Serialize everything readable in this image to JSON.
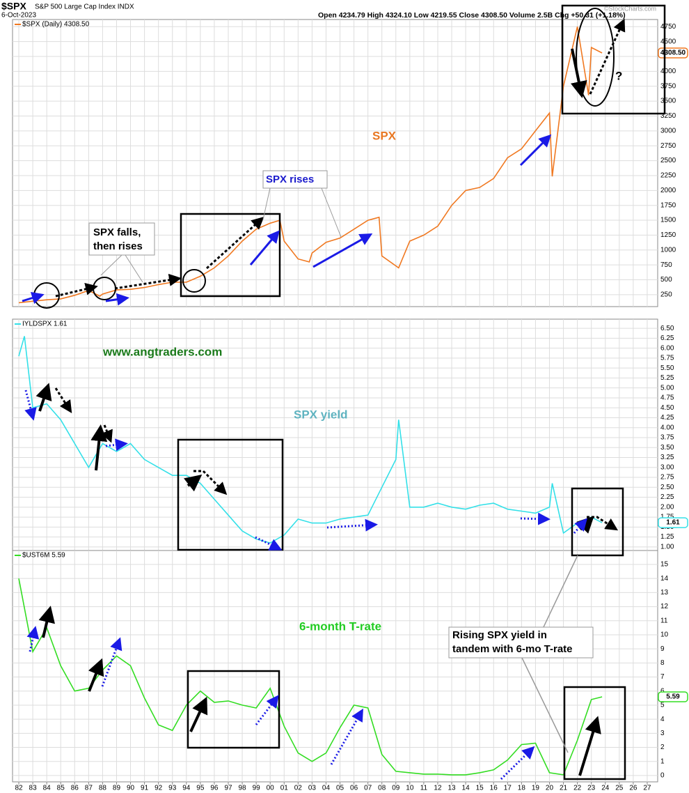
{
  "header": {
    "symbol": "$SPX",
    "name": "S&P 500 Large Cap Index INDX",
    "date": "6-Oct-2023",
    "quote": "Open 4234.79 High 4324.10 Low 4219.55 Close 4308.50 Volume 2.5B Chg +50.31 (+1.18%)",
    "credit": "©StockCharts.com"
  },
  "chart_data": [
    {
      "type": "line",
      "x": [
        1982,
        1983,
        1984,
        1985,
        1986,
        1987,
        1987.8,
        1988,
        1989,
        1990,
        1991,
        1992,
        1993,
        1994,
        1995,
        1996,
        1997,
        1998,
        1999,
        2000,
        2000.7,
        2001,
        2002,
        2002.8,
        2003,
        2004,
        2005,
        2006,
        2007,
        2007.8,
        2008,
        2009.2,
        2010,
        2011,
        2012,
        2013,
        2014,
        2015,
        2016,
        2017,
        2018,
        2019,
        2020,
        2020.2,
        2021,
        2022,
        2022.8,
        2023,
        2023.77
      ],
      "series": [
        {
          "name": "$SPX (Daily) 4308.50",
          "color": "#f07820",
          "last_value_label": "4308.50",
          "values": [
            115,
            140,
            165,
            180,
            240,
            320,
            225,
            260,
            330,
            340,
            370,
            420,
            460,
            460,
            560,
            700,
            900,
            1150,
            1350,
            1450,
            1500,
            1150,
            850,
            800,
            950,
            1130,
            1200,
            1350,
            1500,
            1550,
            900,
            700,
            1150,
            1250,
            1400,
            1750,
            2000,
            2050,
            2200,
            2550,
            2700,
            3000,
            3300,
            2237,
            3750,
            4750,
            3600,
            4400,
            4308.5
          ]
        }
      ],
      "xlim": [
        1981.55,
        2027.75
      ],
      "ylim": [
        50,
        4870
      ],
      "yticks": [
        250,
        500,
        750,
        1000,
        1250,
        1500,
        1750,
        2000,
        2250,
        2500,
        2750,
        3000,
        3250,
        3500,
        3750,
        4000,
        4250,
        4500,
        4750
      ],
      "grid": true,
      "annotations": [
        "SPX",
        "SPX falls,",
        "then rises",
        "SPX rises",
        "?"
      ]
    },
    {
      "type": "line",
      "x": [
        1982,
        1982.4,
        1983,
        1984,
        1985,
        1986,
        1987,
        1988,
        1989,
        1990,
        1991,
        1992,
        1993,
        1994,
        1995,
        1996,
        1997,
        1998,
        1999,
        2000,
        2001,
        2002,
        2003,
        2004,
        2005,
        2006,
        2007,
        2008,
        2009,
        2009.2,
        2010,
        2011,
        2012,
        2013,
        2014,
        2015,
        2016,
        2017,
        2018,
        2019,
        2020,
        2020.2,
        2021,
        2022,
        2023,
        2023.77
      ],
      "series": [
        {
          "name": "IYLDSPX 1.61",
          "color": "#33e0e8",
          "last_value_label": "1.61",
          "values": [
            5.8,
            6.3,
            4.5,
            4.6,
            4.2,
            3.6,
            3.0,
            3.6,
            3.4,
            3.6,
            3.2,
            3.0,
            2.8,
            2.8,
            2.6,
            2.2,
            1.8,
            1.4,
            1.2,
            1.1,
            1.3,
            1.7,
            1.6,
            1.6,
            1.7,
            1.75,
            1.8,
            2.5,
            3.2,
            4.2,
            2.0,
            2.0,
            2.1,
            2.0,
            1.95,
            2.05,
            2.1,
            1.95,
            1.9,
            1.85,
            2.0,
            2.6,
            1.35,
            1.6,
            1.75,
            1.61
          ]
        }
      ],
      "xlim": [
        1981.55,
        2027.75
      ],
      "ylim": [
        0.91,
        6.73
      ],
      "yticks": [
        {
          "value": 1,
          "label": "1.00"
        },
        1.25,
        {
          "value": 1.5,
          "label": "1.50"
        },
        1.75,
        {
          "value": 2,
          "label": "2.00"
        },
        2.25,
        {
          "value": 2.5,
          "label": "2.50"
        },
        2.75,
        {
          "value": 3,
          "label": "3.00"
        },
        3.25,
        {
          "value": 3.5,
          "label": "3.50"
        },
        3.75,
        {
          "value": 4,
          "label": "4.00"
        },
        4.25,
        {
          "value": 4.5,
          "label": "4.50"
        },
        4.75,
        {
          "value": 5,
          "label": "5.00"
        },
        5.25,
        {
          "value": 5.5,
          "label": "5.50"
        },
        5.75,
        {
          "value": 6,
          "label": "6.00"
        },
        6.25,
        {
          "value": 6.5,
          "label": "6.50"
        }
      ],
      "grid": true,
      "annotations": [
        "www.angtraders.com",
        "SPX yield"
      ]
    },
    {
      "type": "line",
      "x": [
        1982,
        1983,
        1984,
        1985,
        1986,
        1987,
        1988,
        1989,
        1990,
        1991,
        1992,
        1993,
        1994,
        1995,
        1996,
        1997,
        1998,
        1999,
        2000,
        2001,
        2002,
        2003,
        2004,
        2005,
        2006,
        2007,
        2008,
        2009,
        2010,
        2011,
        2012,
        2013,
        2014,
        2015,
        2016,
        2017,
        2018,
        2019,
        2020,
        2021,
        2022,
        2023,
        2023.77
      ],
      "series": [
        {
          "name": "$UST6M 5.59",
          "color": "#33dd22",
          "last_value_label": "5.59",
          "values": [
            14,
            8.8,
            10.5,
            7.8,
            6.0,
            6.2,
            7.5,
            8.5,
            7.8,
            5.5,
            3.6,
            3.2,
            5.0,
            6.0,
            5.2,
            5.3,
            5.0,
            4.8,
            6.2,
            3.5,
            1.6,
            1.0,
            1.6,
            3.4,
            5.0,
            4.8,
            1.5,
            0.3,
            0.2,
            0.1,
            0.1,
            0.05,
            0.05,
            0.2,
            0.4,
            1.1,
            2.2,
            2.3,
            0.2,
            0.05,
            2.5,
            5.4,
            5.59
          ]
        }
      ],
      "xlim": [
        1981.55,
        2027.75
      ],
      "ylim": [
        -0.45,
        15.99
      ],
      "yticks": [
        0,
        1,
        2,
        3,
        4,
        5,
        6,
        7,
        8,
        9,
        10,
        11,
        12,
        13,
        14,
        15
      ],
      "xticks": [
        {
          "value": 1982,
          "label": "82"
        },
        {
          "value": 1983,
          "label": "83"
        },
        {
          "value": 1984,
          "label": "84"
        },
        {
          "value": 1985,
          "label": "85"
        },
        {
          "value": 1986,
          "label": "86"
        },
        {
          "value": 1987,
          "label": "87"
        },
        {
          "value": 1988,
          "label": "88"
        },
        {
          "value": 1989,
          "label": "89"
        },
        {
          "value": 1990,
          "label": "90"
        },
        {
          "value": 1991,
          "label": "91"
        },
        {
          "value": 1992,
          "label": "92"
        },
        {
          "value": 1993,
          "label": "93"
        },
        {
          "value": 1994,
          "label": "94"
        },
        {
          "value": 1995,
          "label": "95"
        },
        {
          "value": 1996,
          "label": "96"
        },
        {
          "value": 1997,
          "label": "97"
        },
        {
          "value": 1998,
          "label": "98"
        },
        {
          "value": 1999,
          "label": "99"
        },
        {
          "value": 2000,
          "label": "00"
        },
        {
          "value": 2001,
          "label": "01"
        },
        {
          "value": 2002,
          "label": "02"
        },
        {
          "value": 2003,
          "label": "03"
        },
        {
          "value": 2004,
          "label": "04"
        },
        {
          "value": 2005,
          "label": "05"
        },
        {
          "value": 2006,
          "label": "06"
        },
        {
          "value": 2007,
          "label": "07"
        },
        {
          "value": 2008,
          "label": "08"
        },
        {
          "value": 2009,
          "label": "09"
        },
        {
          "value": 2010,
          "label": "10"
        },
        {
          "value": 2011,
          "label": "11"
        },
        {
          "value": 2012,
          "label": "12"
        },
        {
          "value": 2013,
          "label": "13"
        },
        {
          "value": 2014,
          "label": "14"
        },
        {
          "value": 2015,
          "label": "15"
        },
        {
          "value": 2016,
          "label": "16"
        },
        {
          "value": 2017,
          "label": "17"
        },
        {
          "value": 2018,
          "label": "18"
        },
        {
          "value": 2019,
          "label": "19"
        },
        {
          "value": 2020,
          "label": "20"
        },
        {
          "value": 2021,
          "label": "21"
        },
        {
          "value": 2022,
          "label": "22"
        },
        {
          "value": 2023,
          "label": "23"
        },
        {
          "value": 2024,
          "label": "24"
        },
        {
          "value": 2025,
          "label": "25"
        },
        {
          "value": 2026,
          "label": "26"
        },
        {
          "value": 2027,
          "label": "27"
        }
      ],
      "grid": true,
      "annotations": [
        "6-month T-rate",
        "Rising SPX yield in",
        "tandem with 6-mo T-rate"
      ]
    }
  ]
}
